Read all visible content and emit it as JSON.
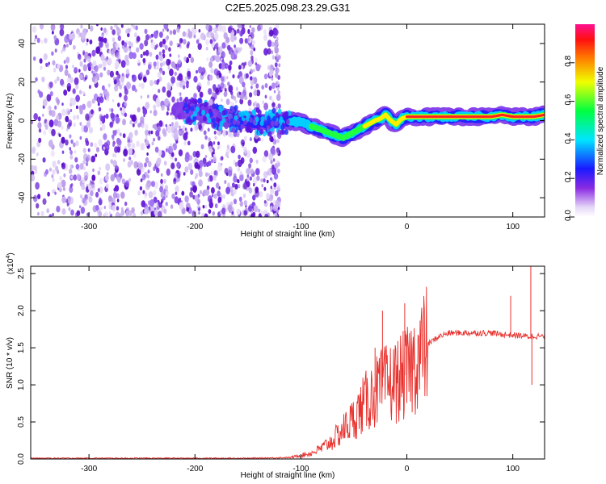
{
  "chart_data": [
    {
      "type": "heatmap",
      "title": "C2E5.2025.098.23.29.G31",
      "xlabel": "Height of straight line (km)",
      "ylabel": "Frequency (Hz)",
      "xlim": [
        -355,
        130
      ],
      "ylim": [
        -50,
        50
      ],
      "xticks": [
        "-300",
        "-200",
        "-100",
        "0",
        "100"
      ],
      "xtick_values": [
        -300,
        -200,
        -100,
        0,
        100
      ],
      "yticks": [
        "-40",
        "-20",
        "0",
        "20",
        "40"
      ],
      "ytick_values": [
        -40,
        -20,
        0,
        20,
        40
      ],
      "colorbar": {
        "label": "Normalized spectral amplitude",
        "ticks": [
          "0.0",
          "0.2",
          "0.4",
          "0.6",
          "0.8"
        ],
        "tick_values": [
          0.0,
          0.2,
          0.4,
          0.6,
          0.8
        ],
        "range": [
          0,
          1
        ]
      },
      "ridge": {
        "x": [
          -200,
          -180,
          -150,
          -130,
          -110,
          -100,
          -90,
          -80,
          -70,
          -60,
          -50,
          -40,
          -30,
          -25,
          -20,
          -15,
          -10,
          -5,
          0,
          20,
          40,
          60,
          80,
          90,
          100,
          110,
          120,
          130
        ],
        "y": [
          5,
          2,
          0,
          -1,
          0,
          -1,
          -3,
          -5,
          -7,
          -9,
          -6,
          -3,
          0,
          1,
          3,
          0,
          -2,
          1,
          2,
          2,
          2,
          2,
          2,
          3,
          2,
          2,
          2,
          3
        ]
      }
    },
    {
      "type": "line",
      "xlabel": "Height of straight line (km)",
      "ylabel": "SNR (10 * v/v)",
      "scale_label": "(x10",
      "scale_exp": "4",
      "xlim": [
        -355,
        130
      ],
      "ylim": [
        0,
        2.6
      ],
      "xticks": [
        "-300",
        "-200",
        "-100",
        "0",
        "100"
      ],
      "xtick_values": [
        -300,
        -200,
        -100,
        0,
        100
      ],
      "yticks": [
        "0.0",
        "0.5",
        "1.0",
        "1.5",
        "2.0",
        "2.5"
      ],
      "ytick_values": [
        0.0,
        0.5,
        1.0,
        1.5,
        2.0,
        2.5
      ],
      "series": [
        {
          "name": "SNR",
          "color": "#e8302c",
          "x": [
            -355,
            -300,
            -200,
            -150,
            -110,
            -100,
            -90,
            -80,
            -70,
            -60,
            -50,
            -40,
            -30,
            -20,
            -10,
            0,
            10,
            20,
            30,
            40,
            60,
            80,
            90,
            100,
            110,
            115,
            120,
            130
          ],
          "y": [
            0.01,
            0.01,
            0.01,
            0.01,
            0.02,
            0.05,
            0.08,
            0.15,
            0.25,
            0.4,
            0.55,
            0.75,
            0.9,
            1.0,
            1.05,
            1.15,
            1.35,
            1.55,
            1.65,
            1.7,
            1.7,
            1.7,
            1.68,
            1.67,
            1.66,
            1.65,
            1.66,
            1.65
          ]
        }
      ],
      "spikes": [
        {
          "x": -30,
          "y": 1.5
        },
        {
          "x": -23,
          "y": 2.0
        },
        {
          "x": -2,
          "y": 2.1
        },
        {
          "x": 98,
          "y": 2.2
        },
        {
          "x": 117,
          "y": 2.6
        },
        {
          "x": 118,
          "y": 1.0
        }
      ]
    }
  ]
}
